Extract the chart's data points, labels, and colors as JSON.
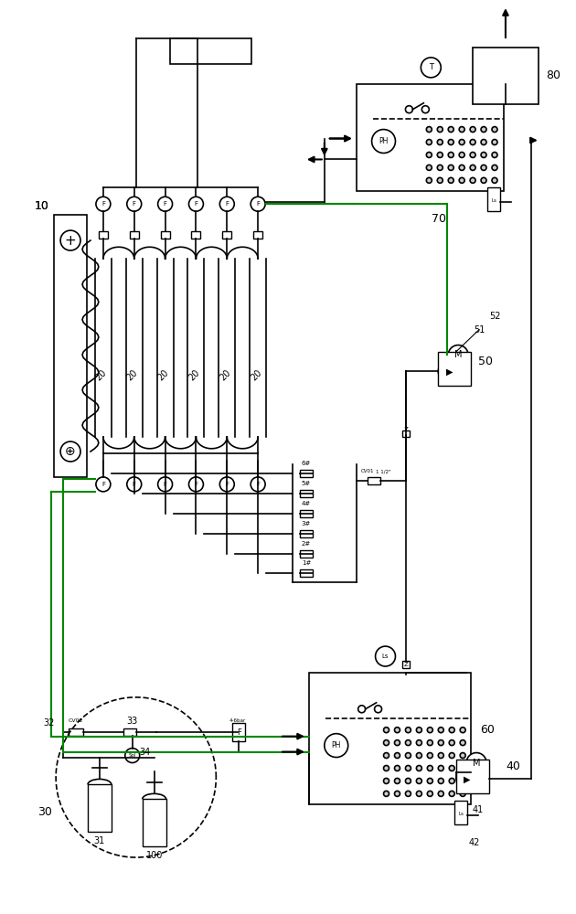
{
  "bg_color": "#ffffff",
  "line_color": "#000000",
  "green_color": "#008800",
  "figsize": [
    6.3,
    10.0
  ],
  "dpi": 100,
  "xlim": [
    0,
    630
  ],
  "ylim": [
    0,
    1000
  ]
}
